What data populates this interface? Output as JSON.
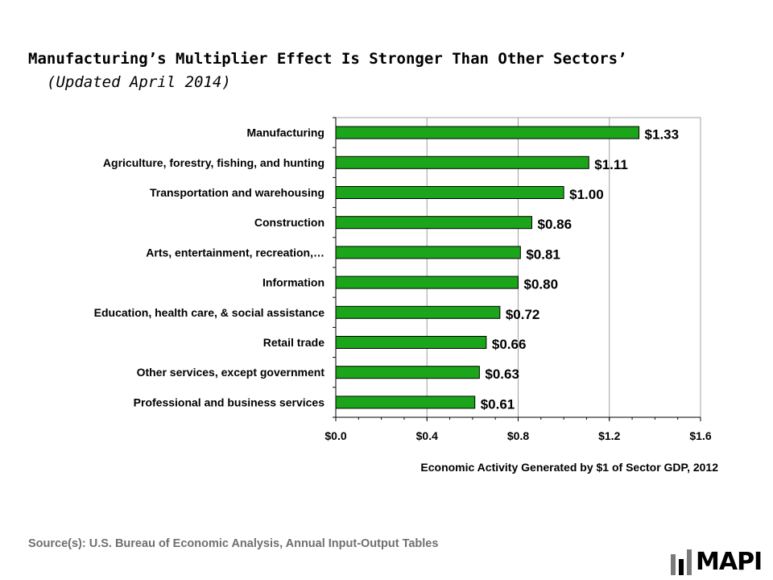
{
  "title": "Manufacturing’s Multiplier Effect Is Stronger Than Other Sectors’",
  "subtitle": "(Updated April 2014)",
  "source": "Source(s): U.S. Bureau of Economic Analysis, Annual Input-Output Tables",
  "logo": {
    "text": "MAPI"
  },
  "colors": {
    "bar": "#1aa51a",
    "bar_border": "#000000",
    "text": "#000000",
    "source": "#6f6f6f"
  },
  "chart_data": {
    "type": "bar",
    "orientation": "horizontal",
    "categories": [
      "Manufacturing",
      "Agriculture, forestry, fishing, and hunting",
      "Transportation and warehousing",
      "Construction",
      "Arts, entertainment, recreation,…",
      "Information",
      "Education, health care, & social assistance",
      "Retail trade",
      "Other services, except government",
      "Professional and business services"
    ],
    "values": [
      1.33,
      1.11,
      1.0,
      0.86,
      0.81,
      0.8,
      0.72,
      0.66,
      0.63,
      0.61
    ],
    "value_labels": [
      "$1.33",
      "$1.11",
      "$1.00",
      "$0.86",
      "$0.81",
      "$0.80",
      "$0.72",
      "$0.66",
      "$0.63",
      "$0.61"
    ],
    "xlim": [
      0,
      1.6
    ],
    "xticks": [
      0,
      0.4,
      0.8,
      1.2,
      1.6
    ],
    "xtick_labels": [
      "$0.0",
      "$0.4",
      "$0.8",
      "$1.2",
      "$1.6"
    ],
    "xlabel": "Economic  Activity  Generated  by $1 of  Sector GDP, 2012",
    "ylabel": "",
    "grid": "vertical",
    "legend": "none"
  }
}
